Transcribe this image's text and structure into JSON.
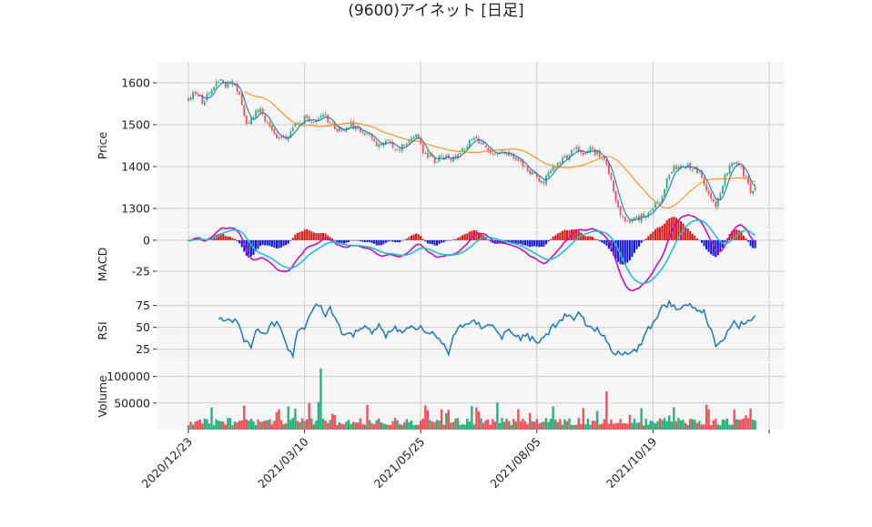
{
  "title": "(9600)アイネット [日足]",
  "colors": {
    "panel_bg": "#f6f6f6",
    "grid": "#cccccc",
    "up": "#2ab07a",
    "down": "#f0525c",
    "sma_short": "#1f77b4",
    "sma_long": "#ff8c1a",
    "macd_line": "#c010c0",
    "signal_line": "#20c0c8",
    "hist_pos": "#e01010",
    "hist_neg": "#1010e0",
    "rsi_line": "#1f77b4"
  },
  "chart_data": [
    {
      "panel": "price",
      "type": "candlestick",
      "ylabel": "Price",
      "ylim": [
        1250,
        1650
      ],
      "yticks": [
        1300,
        1400,
        1500,
        1600
      ],
      "x_ticklabels": [
        "2020/12/23",
        "2021/03/10",
        "2021/05/25",
        "2021/08/05",
        "2021/10/19"
      ],
      "x_tick_index": [
        0,
        50,
        100,
        150,
        200
      ],
      "n_bars": 245,
      "close_anchors": [
        [
          0,
          1560
        ],
        [
          3,
          1580
        ],
        [
          6,
          1555
        ],
        [
          10,
          1590
        ],
        [
          13,
          1610
        ],
        [
          16,
          1590
        ],
        [
          19,
          1600
        ],
        [
          22,
          1575
        ],
        [
          25,
          1500
        ],
        [
          28,
          1520
        ],
        [
          31,
          1540
        ],
        [
          34,
          1500
        ],
        [
          38,
          1475
        ],
        [
          42,
          1465
        ],
        [
          46,
          1500
        ],
        [
          50,
          1515
        ],
        [
          53,
          1510
        ],
        [
          56,
          1520
        ],
        [
          58,
          1530
        ],
        [
          62,
          1495
        ],
        [
          66,
          1485
        ],
        [
          70,
          1500
        ],
        [
          74,
          1480
        ],
        [
          78,
          1470
        ],
        [
          82,
          1450
        ],
        [
          86,
          1465
        ],
        [
          90,
          1440
        ],
        [
          94,
          1455
        ],
        [
          98,
          1470
        ],
        [
          102,
          1430
        ],
        [
          106,
          1415
        ],
        [
          110,
          1425
        ],
        [
          114,
          1420
        ],
        [
          118,
          1440
        ],
        [
          122,
          1470
        ],
        [
          126,
          1455
        ],
        [
          130,
          1430
        ],
        [
          134,
          1435
        ],
        [
          138,
          1425
        ],
        [
          142,
          1420
        ],
        [
          146,
          1390
        ],
        [
          150,
          1375
        ],
        [
          153,
          1365
        ],
        [
          156,
          1390
        ],
        [
          160,
          1410
        ],
        [
          164,
          1430
        ],
        [
          167,
          1440
        ],
        [
          170,
          1435
        ],
        [
          173,
          1440
        ],
        [
          177,
          1430
        ],
        [
          181,
          1390
        ],
        [
          184,
          1320
        ],
        [
          187,
          1275
        ],
        [
          190,
          1270
        ],
        [
          193,
          1275
        ],
        [
          196,
          1285
        ],
        [
          199,
          1295
        ],
        [
          203,
          1320
        ],
        [
          206,
          1370
        ],
        [
          209,
          1395
        ],
        [
          212,
          1405
        ],
        [
          215,
          1400
        ],
        [
          218,
          1395
        ],
        [
          221,
          1380
        ],
        [
          224,
          1330
        ],
        [
          227,
          1310
        ],
        [
          230,
          1360
        ],
        [
          233,
          1405
        ],
        [
          236,
          1410
        ],
        [
          238,
          1395
        ],
        [
          240,
          1370
        ],
        [
          242,
          1340
        ],
        [
          244,
          1350
        ]
      ],
      "sma_short_window": 5,
      "sma_long_window": 25
    },
    {
      "panel": "macd",
      "type": "line",
      "ylabel": "MACD",
      "ylim": [
        -47,
        8
      ],
      "yticks": [
        0,
        -25
      ],
      "series": [
        {
          "name": "MACD"
        },
        {
          "name": "Signal"
        },
        {
          "name": "Histogram"
        }
      ]
    },
    {
      "panel": "rsi",
      "type": "line",
      "ylabel": "RSI",
      "ylim": [
        10,
        82
      ],
      "yticks": [
        25,
        50,
        75
      ],
      "rsi_anchors": [
        [
          13,
          60
        ],
        [
          16,
          55
        ],
        [
          20,
          60
        ],
        [
          22,
          50
        ],
        [
          24,
          32
        ],
        [
          27,
          30
        ],
        [
          30,
          50
        ],
        [
          33,
          40
        ],
        [
          36,
          55
        ],
        [
          39,
          55
        ],
        [
          42,
          30
        ],
        [
          44,
          23
        ],
        [
          45,
          18
        ],
        [
          47,
          45
        ],
        [
          50,
          48
        ],
        [
          53,
          70
        ],
        [
          56,
          75
        ],
        [
          59,
          65
        ],
        [
          61,
          72
        ],
        [
          63,
          62
        ],
        [
          66,
          45
        ],
        [
          70,
          40
        ],
        [
          73,
          45
        ],
        [
          76,
          55
        ],
        [
          79,
          45
        ],
        [
          82,
          52
        ],
        [
          85,
          38
        ],
        [
          88,
          50
        ],
        [
          91,
          45
        ],
        [
          94,
          48
        ],
        [
          97,
          50
        ],
        [
          100,
          52
        ],
        [
          103,
          45
        ],
        [
          107,
          40
        ],
        [
          110,
          30
        ],
        [
          112,
          20
        ],
        [
          114,
          40
        ],
        [
          117,
          50
        ],
        [
          120,
          55
        ],
        [
          123,
          60
        ],
        [
          126,
          50
        ],
        [
          129,
          55
        ],
        [
          132,
          48
        ],
        [
          135,
          40
        ],
        [
          138,
          45
        ],
        [
          142,
          38
        ],
        [
          146,
          40
        ],
        [
          150,
          33
        ],
        [
          153,
          38
        ],
        [
          156,
          48
        ],
        [
          159,
          55
        ],
        [
          162,
          62
        ],
        [
          165,
          60
        ],
        [
          168,
          65
        ],
        [
          171,
          55
        ],
        [
          174,
          50
        ],
        [
          177,
          45
        ],
        [
          180,
          35
        ],
        [
          183,
          22
        ],
        [
          186,
          20
        ],
        [
          189,
          18
        ],
        [
          192,
          22
        ],
        [
          195,
          30
        ],
        [
          198,
          48
        ],
        [
          201,
          60
        ],
        [
          204,
          72
        ],
        [
          207,
          78
        ],
        [
          210,
          70
        ],
        [
          213,
          72
        ],
        [
          216,
          75
        ],
        [
          219,
          70
        ],
        [
          222,
          68
        ],
        [
          225,
          45
        ],
        [
          227,
          30
        ],
        [
          229,
          32
        ],
        [
          231,
          40
        ],
        [
          234,
          55
        ],
        [
          237,
          52
        ],
        [
          240,
          58
        ],
        [
          243,
          60
        ],
        [
          245,
          63
        ]
      ]
    },
    {
      "panel": "volume",
      "type": "bar",
      "ylabel": "Volume",
      "ylim": [
        0,
        125000
      ],
      "yticks": [
        50000,
        100000
      ]
    }
  ]
}
